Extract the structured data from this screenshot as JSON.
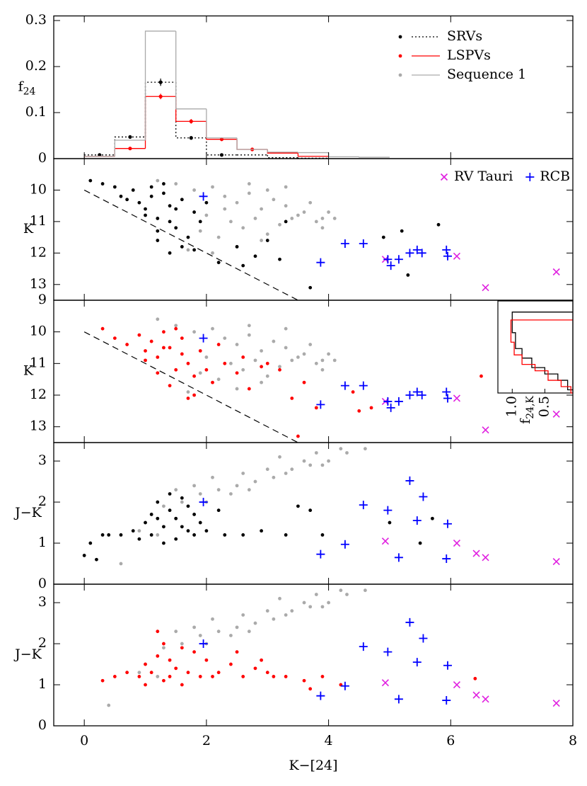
{
  "x_axis": {
    "label": "K−[24]",
    "xlim": [
      -0.5,
      8
    ],
    "xticks": [
      0,
      2,
      4,
      6,
      8
    ]
  },
  "chart_data": [
    {
      "type": "histogram",
      "ylabel": {
        "text": "f",
        "sub": "24"
      },
      "ylim": [
        0,
        0.31
      ],
      "yticks": [
        0,
        0.1,
        0.2,
        0.3
      ],
      "legend": "top-right",
      "series": [
        {
          "name": "SRVs",
          "color": "#000000",
          "style": "dotted",
          "bins": [
            0,
            0.5,
            1,
            1.5,
            2,
            2.5,
            3,
            3.5,
            4
          ],
          "values": [
            0.008,
            0.047,
            0.166,
            0.045,
            0.008,
            0.008,
            0.002,
            0.001
          ],
          "errors": [
            0.002,
            0.004,
            0.008,
            0.004,
            0.002,
            null,
            null,
            null
          ]
        },
        {
          "name": "LSPVs",
          "color": "#ff0000",
          "style": "solid",
          "bins": [
            0,
            0.5,
            1,
            1.5,
            2,
            2.5,
            3,
            3.5,
            4
          ],
          "values": [
            0.005,
            0.022,
            0.135,
            0.081,
            0.042,
            0.02,
            0.012,
            0.005
          ],
          "errors": [
            null,
            0.003,
            0.006,
            0.005,
            0.004,
            0.003,
            null,
            null
          ]
        },
        {
          "name": "Sequence 1",
          "color": "#aaaaaa",
          "style": "solid",
          "bins": [
            0,
            0.5,
            1,
            1.5,
            2,
            2.5,
            3,
            3.5,
            4,
            4.5,
            5
          ],
          "values": [
            0.005,
            0.04,
            0.277,
            0.108,
            0.045,
            0.02,
            0.014,
            0.013,
            0.004,
            0.003
          ]
        }
      ]
    },
    {
      "type": "scatter",
      "ylabel": {
        "text": "K"
      },
      "ylim": [
        9,
        13.5
      ],
      "y_inverted": true,
      "yticks": [
        10,
        11,
        12,
        13
      ],
      "legend": "top-right",
      "lines": [
        {
          "x": [
            0,
            3.5
          ],
          "y": [
            10,
            13.5
          ]
        }
      ],
      "series": [
        {
          "color": "#aaaaaa",
          "marker": "dot",
          "x": [
            1.2,
            1.5,
            1.8,
            2.1,
            2.3,
            2.5,
            2.7,
            2.9,
            3.1,
            3.3,
            3.5,
            3.7,
            3.9,
            2.0,
            2.4,
            2.8,
            3.2,
            3.6,
            1.9,
            2.2,
            2.6,
            3.0,
            3.4,
            3.8,
            2.5,
            2.9,
            3.3,
            1.7,
            2.1,
            3.0,
            4.0,
            4.1,
            3.9,
            2.7,
            2.3
          ],
          "y": [
            9.7,
            9.8,
            10.0,
            9.9,
            10.2,
            10.4,
            10.1,
            10.6,
            10.3,
            10.5,
            10.8,
            10.4,
            10.9,
            10.8,
            11.0,
            10.9,
            11.1,
            10.7,
            11.3,
            11.5,
            11.2,
            11.4,
            10.9,
            11.0,
            11.8,
            11.6,
            9.9,
            11.9,
            12.0,
            10.0,
            10.7,
            10.9,
            11.2,
            9.8,
            10.6
          ]
        },
        {
          "color": "#000000",
          "marker": "dot",
          "x": [
            0.1,
            0.3,
            0.5,
            0.6,
            0.8,
            0.9,
            1.0,
            1.1,
            1.2,
            1.3,
            1.4,
            1.5,
            1.6,
            1.7,
            1.8,
            1.9,
            2.0,
            1.0,
            1.2,
            1.4,
            1.6,
            1.1,
            1.3,
            1.5,
            1.2,
            1.4,
            0.7,
            1.8,
            2.2,
            2.5,
            2.8,
            3.0,
            3.2,
            3.7,
            4.9,
            5.2,
            5.3,
            5.8,
            3.3,
            2.6
          ],
          "y": [
            9.7,
            9.8,
            9.9,
            10.2,
            10.0,
            10.4,
            10.6,
            10.2,
            10.9,
            9.8,
            10.5,
            11.2,
            10.3,
            11.5,
            10.7,
            11.0,
            10.4,
            10.8,
            11.3,
            11.0,
            11.8,
            9.9,
            10.1,
            10.6,
            11.6,
            12.0,
            10.3,
            11.9,
            12.3,
            11.8,
            12.1,
            11.6,
            12.2,
            13.1,
            11.5,
            11.3,
            12.7,
            11.1,
            11.0,
            12.4
          ]
        },
        {
          "name": "RV Tauri",
          "color": "#e020e0",
          "marker": "cross",
          "x": [
            4.93,
            6.1,
            6.57,
            7.73
          ],
          "y": [
            12.2,
            12.1,
            13.1,
            12.6
          ]
        },
        {
          "name": "RCB",
          "color": "#0000ff",
          "marker": "plus",
          "x": [
            1.95,
            3.87,
            4.27,
            4.57,
            4.97,
            5.02,
            5.15,
            5.33,
            5.45,
            5.53,
            5.93,
            5.95
          ],
          "y": [
            10.2,
            12.3,
            11.7,
            11.7,
            12.2,
            12.4,
            12.2,
            12.0,
            11.9,
            12.0,
            11.9,
            12.1
          ]
        }
      ]
    },
    {
      "type": "scatter",
      "ylabel": {
        "text": "K"
      },
      "ylim": [
        9,
        13.5
      ],
      "y_inverted": true,
      "yticks": [
        9,
        10,
        11,
        12,
        13
      ],
      "lines": [
        {
          "x": [
            0,
            3.5
          ],
          "y": [
            10,
            13.5
          ]
        }
      ],
      "series": [
        {
          "color": "#aaaaaa",
          "marker": "dot",
          "x": [
            1.2,
            1.5,
            1.8,
            2.1,
            2.3,
            2.5,
            2.7,
            2.9,
            3.1,
            3.3,
            3.5,
            3.7,
            3.9,
            2.0,
            2.4,
            2.8,
            3.2,
            3.6,
            1.9,
            2.2,
            2.6,
            3.0,
            3.4,
            3.8,
            2.5,
            2.9,
            3.3,
            1.7,
            4.0,
            4.1,
            3.9,
            2.7
          ],
          "y": [
            9.6,
            9.8,
            10.0,
            9.9,
            10.2,
            10.4,
            10.1,
            10.6,
            10.3,
            10.5,
            10.8,
            10.4,
            10.9,
            10.8,
            11.0,
            10.9,
            11.1,
            10.7,
            11.3,
            11.5,
            11.2,
            11.4,
            10.9,
            11.0,
            11.8,
            11.6,
            9.9,
            11.9,
            10.7,
            10.9,
            11.2,
            9.8
          ]
        },
        {
          "color": "#ff0000",
          "marker": "dot",
          "x": [
            0.3,
            0.5,
            0.7,
            0.9,
            1.0,
            1.1,
            1.2,
            1.3,
            1.4,
            1.5,
            1.6,
            1.7,
            1.8,
            1.9,
            2.0,
            2.1,
            2.3,
            2.5,
            2.7,
            2.9,
            3.0,
            1.2,
            1.4,
            1.6,
            1.8,
            1.0,
            1.5,
            2.2,
            2.6,
            3.2,
            3.4,
            3.6,
            3.8,
            4.4,
            4.5,
            4.7,
            3.5,
            1.3,
            1.7,
            6.5
          ],
          "y": [
            9.9,
            10.2,
            10.4,
            10.1,
            10.6,
            10.3,
            10.8,
            10.0,
            10.5,
            11.2,
            10.7,
            11.0,
            11.4,
            10.6,
            11.2,
            11.6,
            11.0,
            11.3,
            11.8,
            11.1,
            11.0,
            11.3,
            11.7,
            10.2,
            12.0,
            10.9,
            9.9,
            10.4,
            10.8,
            11.2,
            12.1,
            11.6,
            12.4,
            11.9,
            12.5,
            12.4,
            13.3,
            10.5,
            12.1,
            11.4
          ]
        },
        {
          "color": "#e020e0",
          "marker": "cross",
          "x": [
            4.93,
            6.1,
            6.57,
            7.73
          ],
          "y": [
            12.2,
            12.1,
            13.1,
            12.6
          ]
        },
        {
          "color": "#0000ff",
          "marker": "plus",
          "x": [
            1.95,
            3.87,
            4.27,
            4.57,
            4.97,
            5.02,
            5.15,
            5.33,
            5.45,
            5.53,
            5.93,
            5.95
          ],
          "y": [
            10.2,
            12.3,
            11.7,
            11.7,
            12.2,
            12.4,
            12.2,
            12.0,
            11.9,
            12.0,
            11.9,
            12.1
          ]
        }
      ],
      "inset": {
        "xlabel": {
          "text": "f",
          "sub": "24,K"
        },
        "xlim": [
          1.22,
          0.07
        ],
        "ylim": [
          9.0,
          11.9
        ],
        "xticks": [
          {
            "value": 1,
            "label": "1.0"
          },
          0.5
        ],
        "series": [
          {
            "color": "#000000",
            "x": [
              0.07,
              1.0,
              1.0,
              0.95,
              0.95,
              0.85,
              0.85,
              0.7,
              0.7,
              0.5,
              0.5,
              0.3,
              0.3,
              0.15,
              0.15,
              0.07
            ],
            "y": [
              9.35,
              9.35,
              10.0,
              10.0,
              10.5,
              10.5,
              10.8,
              10.8,
              11.1,
              11.1,
              11.3,
              11.3,
              11.5,
              11.5,
              11.8,
              11.8
            ]
          },
          {
            "color": "#ff0000",
            "x": [
              0.07,
              1.02,
              1.02,
              0.97,
              0.97,
              0.85,
              0.85,
              0.65,
              0.65,
              0.45,
              0.45,
              0.25,
              0.25,
              0.1,
              0.1,
              0.07
            ],
            "y": [
              9.6,
              9.6,
              10.3,
              10.3,
              10.7,
              10.7,
              11.0,
              11.0,
              11.2,
              11.2,
              11.5,
              11.5,
              11.7,
              11.7,
              11.9,
              11.9
            ]
          }
        ]
      }
    },
    {
      "type": "scatter",
      "ylabel": {
        "text": "J−K"
      },
      "ylim": [
        0,
        3.45
      ],
      "yticks": [
        0,
        1,
        2,
        3
      ],
      "series": [
        {
          "color": "#aaaaaa",
          "marker": "dot",
          "x": [
            1.0,
            1.3,
            1.6,
            1.9,
            2.2,
            2.5,
            2.8,
            3.1,
            3.4,
            3.7,
            4.0,
            4.3,
            2.0,
            2.4,
            2.7,
            3.0,
            3.3,
            3.6,
            3.9,
            4.2,
            1.5,
            1.8,
            1.2,
            0.9,
            2.1,
            2.6,
            3.2,
            3.8,
            4.6,
            0.6
          ],
          "y": [
            1.5,
            1.9,
            2.0,
            2.2,
            2.3,
            2.4,
            2.5,
            2.6,
            2.8,
            2.9,
            3.0,
            3.2,
            2.0,
            2.2,
            2.3,
            2.8,
            2.7,
            3.0,
            2.9,
            3.3,
            2.3,
            2.4,
            1.2,
            1.3,
            2.6,
            2.7,
            3.1,
            3.2,
            3.3,
            0.5
          ]
        },
        {
          "color": "#000000",
          "marker": "dot",
          "x": [
            0.0,
            0.1,
            0.2,
            0.3,
            0.4,
            0.6,
            0.8,
            1.0,
            1.1,
            1.2,
            1.3,
            1.4,
            1.5,
            1.6,
            1.7,
            1.8,
            1.9,
            1.1,
            1.3,
            1.5,
            1.7,
            1.2,
            1.4,
            1.6,
            2.0,
            2.3,
            2.6,
            2.9,
            3.3,
            3.5,
            3.7,
            3.9,
            5.0,
            5.5,
            5.7,
            1.8,
            2.2,
            0.9
          ],
          "y": [
            0.7,
            1.0,
            0.6,
            1.2,
            1.2,
            1.2,
            1.3,
            1.5,
            1.7,
            2.0,
            1.4,
            1.8,
            1.6,
            2.1,
            1.3,
            1.7,
            1.5,
            1.2,
            1.0,
            1.1,
            1.9,
            1.6,
            2.2,
            1.4,
            1.3,
            1.2,
            1.2,
            1.3,
            1.2,
            1.9,
            1.8,
            1.2,
            1.5,
            1.0,
            1.6,
            1.2,
            1.8,
            1.1
          ]
        },
        {
          "color": "#e020e0",
          "marker": "cross",
          "x": [
            4.93,
            6.1,
            6.42,
            6.57,
            7.73
          ],
          "y": [
            1.05,
            1.0,
            0.75,
            0.65,
            0.55
          ]
        },
        {
          "color": "#0000ff",
          "marker": "plus",
          "x": [
            1.95,
            3.87,
            4.27,
            4.57,
            4.97,
            5.15,
            5.33,
            5.45,
            5.55,
            5.93,
            5.95
          ],
          "y": [
            2.0,
            0.73,
            0.97,
            1.93,
            1.8,
            0.65,
            2.52,
            1.55,
            2.13,
            0.62,
            1.47
          ]
        }
      ]
    },
    {
      "type": "scatter",
      "ylabel": {
        "text": "J−K"
      },
      "ylim": [
        0,
        3.45
      ],
      "yticks": [
        0,
        1,
        2,
        3
      ],
      "series": [
        {
          "color": "#aaaaaa",
          "marker": "dot",
          "x": [
            1.0,
            1.3,
            1.6,
            1.9,
            2.2,
            2.5,
            2.8,
            3.1,
            3.4,
            3.7,
            4.0,
            4.3,
            2.0,
            2.4,
            2.7,
            3.0,
            3.3,
            3.6,
            3.9,
            4.2,
            1.5,
            1.8,
            1.2,
            0.9,
            2.1,
            2.6,
            3.2,
            3.8,
            4.6,
            0.4
          ],
          "y": [
            1.5,
            1.9,
            2.0,
            2.2,
            2.3,
            2.4,
            2.5,
            2.6,
            2.8,
            2.9,
            3.0,
            3.2,
            2.0,
            2.2,
            2.3,
            2.8,
            2.7,
            3.0,
            2.9,
            3.3,
            2.3,
            2.4,
            1.2,
            1.3,
            2.6,
            2.7,
            3.1,
            3.2,
            3.3,
            0.5
          ]
        },
        {
          "color": "#ff0000",
          "marker": "dot",
          "x": [
            0.3,
            0.5,
            0.7,
            0.9,
            1.0,
            1.1,
            1.2,
            1.3,
            1.4,
            1.5,
            1.6,
            1.7,
            1.8,
            1.9,
            2.0,
            2.2,
            2.4,
            2.6,
            2.8,
            3.0,
            3.3,
            3.6,
            3.9,
            4.2,
            1.2,
            1.4,
            1.6,
            1.3,
            2.1,
            2.5,
            2.9,
            3.1,
            3.7,
            6.4,
            1.0
          ],
          "y": [
            1.1,
            1.2,
            1.3,
            1.2,
            1.5,
            1.3,
            1.7,
            2.0,
            1.6,
            1.4,
            1.9,
            1.3,
            1.8,
            1.2,
            1.6,
            1.3,
            1.5,
            1.2,
            1.4,
            1.3,
            1.2,
            1.1,
            1.2,
            1.0,
            2.3,
            1.2,
            1.0,
            1.1,
            1.2,
            1.8,
            1.6,
            1.2,
            0.9,
            1.15,
            1.0
          ]
        },
        {
          "color": "#e020e0",
          "marker": "cross",
          "x": [
            4.93,
            6.1,
            6.42,
            6.57,
            7.73
          ],
          "y": [
            1.05,
            1.0,
            0.75,
            0.65,
            0.55
          ]
        },
        {
          "color": "#0000ff",
          "marker": "plus",
          "x": [
            1.95,
            3.87,
            4.27,
            4.57,
            4.97,
            5.15,
            5.33,
            5.45,
            5.55,
            5.93,
            5.95
          ],
          "y": [
            2.0,
            0.73,
            0.97,
            1.93,
            1.8,
            0.65,
            2.52,
            1.55,
            2.13,
            0.62,
            1.47
          ]
        }
      ]
    }
  ]
}
